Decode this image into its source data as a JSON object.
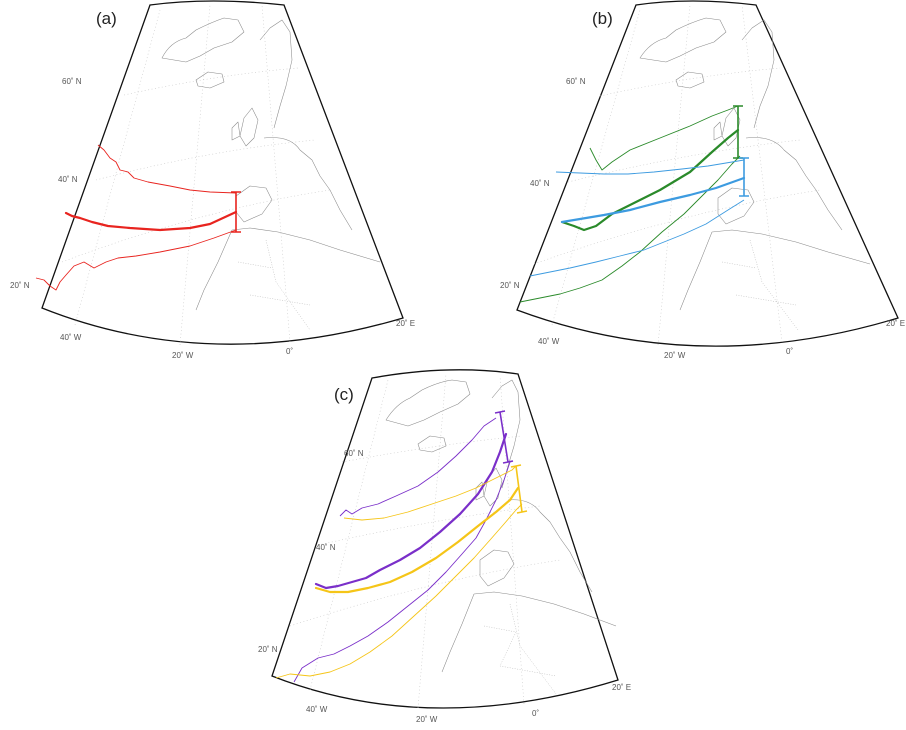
{
  "panels": [
    {
      "label": "(a)",
      "lat_labels": [
        "60˚ N",
        "40˚ N",
        "20˚ N"
      ],
      "lon_labels": [
        "40˚ W",
        "20˚ W",
        "0˚",
        "20˚ E"
      ],
      "tracks": [
        {
          "color": "#e8241f"
        }
      ]
    },
    {
      "label": "(b)",
      "lat_labels": [
        "60˚ N",
        "40˚ N",
        "20˚ N"
      ],
      "lon_labels": [
        "40˚ W",
        "20˚ W",
        "0˚",
        "20˚ E"
      ],
      "tracks": [
        {
          "color": "#2a8a2a"
        },
        {
          "color": "#3d9be0"
        }
      ]
    },
    {
      "label": "(c)",
      "lat_labels": [
        "60˚ N",
        "40˚ N",
        "20˚ N"
      ],
      "lon_labels": [
        "40˚ W",
        "20˚ W",
        "0˚",
        "20˚ E"
      ],
      "tracks": [
        {
          "color": "#7a2fc9"
        },
        {
          "color": "#f5c518"
        }
      ]
    }
  ]
}
